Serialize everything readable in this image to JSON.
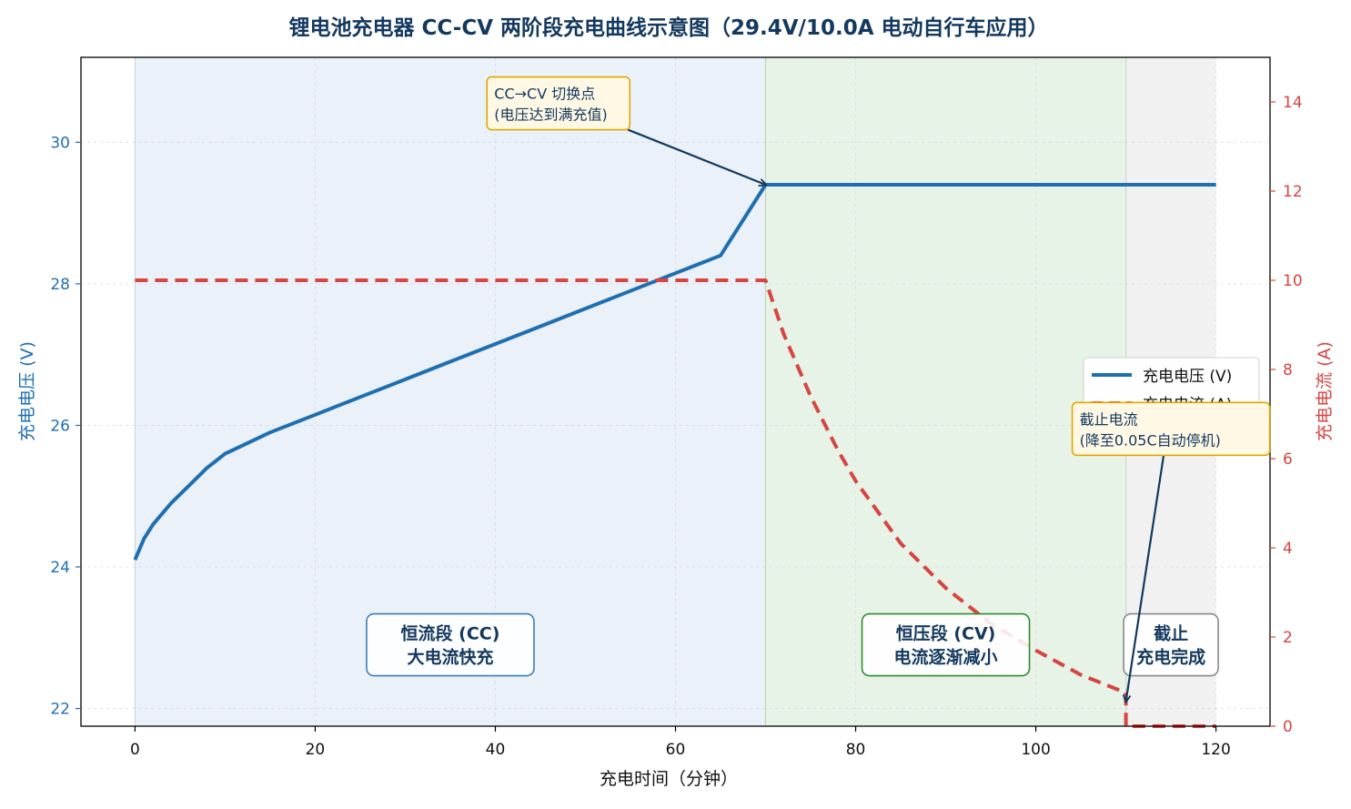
{
  "chart_data": {
    "type": "line",
    "title": "锂电池充电器 CC-CV 两阶段充电曲线示意图（29.4V/10.0A 电动自行车应用）",
    "xlabel": "充电时间（分钟）",
    "ylabel_left": "充电电压 (V)",
    "ylabel_right": "充电电流 (A)",
    "xlim": [
      -6,
      126
    ],
    "ylim_left": [
      21.75,
      31.2
    ],
    "ylim_right": [
      0,
      15
    ],
    "x_ticks": [
      0,
      20,
      40,
      60,
      80,
      100,
      120
    ],
    "y_ticks_left": [
      22,
      24,
      26,
      28,
      30
    ],
    "y_ticks_right": [
      0,
      2,
      4,
      6,
      8,
      10,
      12,
      14
    ],
    "grid": true,
    "legend_position": "center-right",
    "series": [
      {
        "name": "充电电压 (V)",
        "axis": "left",
        "style": "solid",
        "color": "#1f6fb0",
        "points": [
          [
            0,
            24.1
          ],
          [
            1,
            24.4
          ],
          [
            2,
            24.6
          ],
          [
            4,
            24.9
          ],
          [
            6,
            25.15
          ],
          [
            8,
            25.4
          ],
          [
            10,
            25.6
          ],
          [
            15,
            25.9
          ],
          [
            20,
            26.15
          ],
          [
            25,
            26.4
          ],
          [
            30,
            26.65
          ],
          [
            35,
            26.9
          ],
          [
            40,
            27.15
          ],
          [
            45,
            27.4
          ],
          [
            50,
            27.65
          ],
          [
            55,
            27.9
          ],
          [
            60,
            28.15
          ],
          [
            65,
            28.4
          ],
          [
            70,
            29.4
          ],
          [
            80,
            29.4
          ],
          [
            90,
            29.4
          ],
          [
            100,
            29.4
          ],
          [
            110,
            29.4
          ],
          [
            120,
            29.4
          ]
        ]
      },
      {
        "name": "充电电流 (A)",
        "axis": "right",
        "style": "dashed",
        "color": "#d64541",
        "points": [
          [
            0,
            10
          ],
          [
            70,
            10
          ],
          [
            72,
            8.8
          ],
          [
            75,
            7.4
          ],
          [
            78,
            6.2
          ],
          [
            80,
            5.5
          ],
          [
            85,
            4.1
          ],
          [
            90,
            3.1
          ],
          [
            95,
            2.3
          ],
          [
            100,
            1.7
          ],
          [
            105,
            1.15
          ],
          [
            110,
            0.75
          ],
          [
            110,
            0
          ],
          [
            120,
            0
          ]
        ]
      }
    ],
    "regions": [
      {
        "x_start": 0,
        "x_end": 70,
        "color": "#e8eff8"
      },
      {
        "x_start": 70,
        "x_end": 110,
        "color": "#e6f2e6"
      },
      {
        "x_start": 110,
        "x_end": 120,
        "color": "#f0f0f0"
      }
    ],
    "phase_labels": [
      {
        "line1": "恒流段 (CC)",
        "line2": "大电流快充",
        "x": 35,
        "y_left": 22.9,
        "border_color": "#3b7dbb"
      },
      {
        "line1": "恒压段 (CV)",
        "line2": "电流逐渐减小",
        "x": 90,
        "y_left": 22.9,
        "border_color": "#2d8c2d"
      },
      {
        "line1": "截止",
        "line2": "充电完成",
        "x": 115,
        "y_left": 22.9,
        "border_color": "#888888"
      }
    ],
    "annotations": [
      {
        "line1": "CC→CV 切换点",
        "line2": "(电压达到满充值)",
        "text_x": 47,
        "text_y_left": 30.55,
        "arrow_to_x": 70,
        "arrow_to_y_left": 29.4
      },
      {
        "line1": "截止电流",
        "line2": "(降至0.05C自动停机)",
        "text_x": 115,
        "text_y_left": 25.95,
        "arrow_to_x": 110,
        "arrow_to_y_left": 22.1
      }
    ]
  }
}
